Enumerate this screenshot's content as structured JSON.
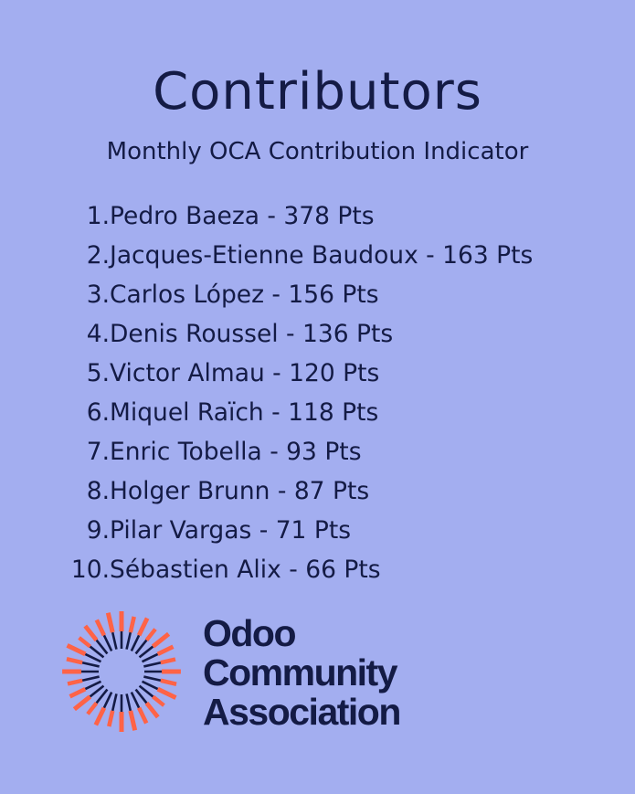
{
  "header": {
    "title": "Contributors",
    "subtitle": "Monthly OCA Contribution Indicator"
  },
  "contributors": [
    {
      "rank": "1.",
      "text": "Pedro Baeza - 378 Pts"
    },
    {
      "rank": "2.",
      "text": "Jacques-Etienne Baudoux - 163 Pts"
    },
    {
      "rank": "3.",
      "text": "Carlos López - 156 Pts"
    },
    {
      "rank": "4.",
      "text": "Denis Roussel - 136 Pts"
    },
    {
      "rank": "5.",
      "text": "Victor Almau - 120 Pts"
    },
    {
      "rank": "6.",
      "text": "Miquel Raïch - 118 Pts"
    },
    {
      "rank": "7.",
      "text": "Enric Tobella - 93 Pts"
    },
    {
      "rank": "8.",
      "text": "Holger Brunn - 87 Pts"
    },
    {
      "rank": "9.",
      "text": "Pilar Vargas - 71 Pts"
    },
    {
      "rank": "10.",
      "text": "Sébastien Alix - 66 Pts"
    }
  ],
  "logo": {
    "icon": "sunburst-logo-icon",
    "line1": "Odoo",
    "line2": "Community",
    "line3": "Association"
  },
  "colors": {
    "background": "#a3aef0",
    "text": "#141b45",
    "accent": "#ff6347"
  }
}
